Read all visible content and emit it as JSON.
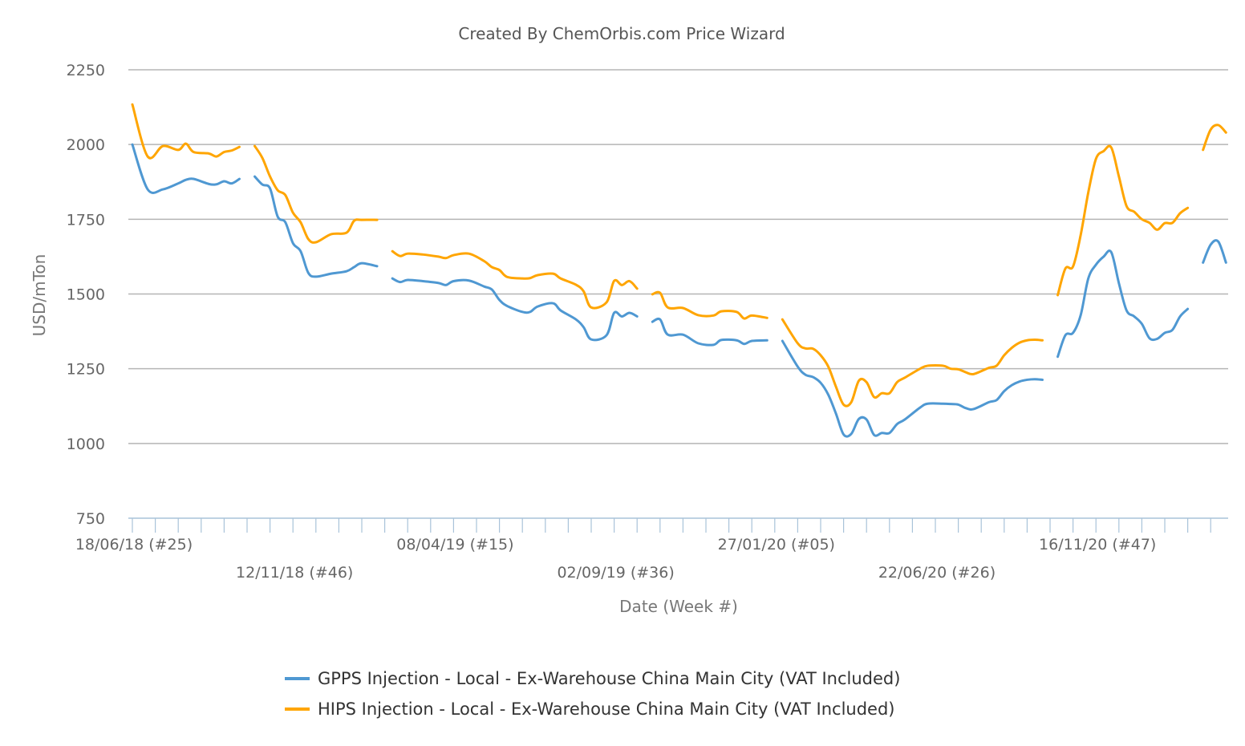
{
  "chart_data": {
    "type": "line",
    "title": "Created By ChemOrbis.com Price Wizard",
    "xlabel": "Date (Week #)",
    "ylabel": "USD/mTon",
    "ylim": [
      750,
      2250
    ],
    "yticks": [
      750,
      1000,
      1250,
      1500,
      1750,
      2000,
      2250
    ],
    "xlim": [
      "2018-06-18",
      "2021-03-17"
    ],
    "x_tick_labels": [
      {
        "date": "2018-06-18",
        "label": "18/06/18 (#25)"
      },
      {
        "date": "2018-11-12",
        "label": "12/11/18 (#46)"
      },
      {
        "date": "2019-04-08",
        "label": "08/04/19 (#15)"
      },
      {
        "date": "2019-09-02",
        "label": "02/09/19 (#36)"
      },
      {
        "date": "2020-01-27",
        "label": "27/01/20 (#05)"
      },
      {
        "date": "2020-06-22",
        "label": "22/06/20 (#26)"
      },
      {
        "date": "2020-11-16",
        "label": "16/11/20 (#47)"
      }
    ],
    "grid": true,
    "legend_position": "bottom",
    "series": [
      {
        "name": "GPPS Injection - Local - Ex-Warehouse China Main City (VAT Included)",
        "color": "#4f98d2",
        "points": [
          [
            "2018-06-18",
            2000
          ],
          [
            "2018-07-02",
            1850
          ],
          [
            "2018-07-16",
            1850
          ],
          [
            "2018-07-30",
            1870
          ],
          [
            "2018-08-06",
            1882
          ],
          [
            "2018-08-13",
            1885
          ],
          [
            "2018-08-27",
            1868
          ],
          [
            "2018-09-03",
            1867
          ],
          [
            "2018-09-10",
            1877
          ],
          [
            "2018-09-17",
            1870
          ],
          [
            "2018-09-24",
            1885
          ],
          null,
          [
            "2018-10-08",
            1893
          ],
          [
            "2018-10-15",
            1866
          ],
          [
            "2018-10-22",
            1853
          ],
          [
            "2018-10-29",
            1759
          ],
          [
            "2018-11-05",
            1740
          ],
          [
            "2018-11-12",
            1670
          ],
          [
            "2018-11-19",
            1643
          ],
          [
            "2018-11-26",
            1571
          ],
          [
            "2018-12-03",
            1558
          ],
          [
            "2018-12-17",
            1568
          ],
          [
            "2018-12-31",
            1576
          ],
          [
            "2019-01-07",
            1590
          ],
          [
            "2019-01-14",
            1603
          ],
          [
            "2019-01-28",
            1593
          ],
          null,
          [
            "2019-02-11",
            1552
          ],
          [
            "2019-02-18",
            1540
          ],
          [
            "2019-02-25",
            1547
          ],
          [
            "2019-03-11",
            1543
          ],
          [
            "2019-03-25",
            1537
          ],
          [
            "2019-04-01",
            1530
          ],
          [
            "2019-04-08",
            1543
          ],
          [
            "2019-04-22",
            1545
          ],
          [
            "2019-05-06",
            1525
          ],
          [
            "2019-05-13",
            1515
          ],
          [
            "2019-05-20",
            1480
          ],
          [
            "2019-05-27",
            1460
          ],
          [
            "2019-06-10",
            1440
          ],
          [
            "2019-06-17",
            1440
          ],
          [
            "2019-06-24",
            1458
          ],
          [
            "2019-07-08",
            1469
          ],
          [
            "2019-07-15",
            1445
          ],
          [
            "2019-07-29",
            1415
          ],
          [
            "2019-08-05",
            1389
          ],
          [
            "2019-08-12",
            1348
          ],
          [
            "2019-08-26",
            1362
          ],
          [
            "2019-09-02",
            1437
          ],
          [
            "2019-09-09",
            1425
          ],
          [
            "2019-09-16",
            1437
          ],
          [
            "2019-09-23",
            1425
          ],
          null,
          [
            "2019-10-07",
            1407
          ],
          [
            "2019-10-14",
            1415
          ],
          [
            "2019-10-21",
            1364
          ],
          [
            "2019-11-04",
            1364
          ],
          [
            "2019-11-18",
            1335
          ],
          [
            "2019-12-02",
            1330
          ],
          [
            "2019-12-09",
            1346
          ],
          [
            "2019-12-23",
            1345
          ],
          [
            "2019-12-30",
            1333
          ],
          [
            "2020-01-06",
            1343
          ],
          [
            "2020-01-20",
            1345
          ],
          null,
          [
            "2020-02-03",
            1343
          ],
          [
            "2020-02-17",
            1257
          ],
          [
            "2020-02-24",
            1230
          ],
          [
            "2020-03-02",
            1222
          ],
          [
            "2020-03-09",
            1203
          ],
          [
            "2020-03-16",
            1163
          ],
          [
            "2020-03-23",
            1100
          ],
          [
            "2020-03-30",
            1030
          ],
          [
            "2020-04-06",
            1032
          ],
          [
            "2020-04-13",
            1082
          ],
          [
            "2020-04-20",
            1080
          ],
          [
            "2020-04-27",
            1028
          ],
          [
            "2020-05-04",
            1035
          ],
          [
            "2020-05-11",
            1035
          ],
          [
            "2020-05-18",
            1065
          ],
          [
            "2020-05-25",
            1080
          ],
          [
            "2020-06-08",
            1120
          ],
          [
            "2020-06-15",
            1133
          ],
          [
            "2020-06-29",
            1133
          ],
          [
            "2020-07-06",
            1132
          ],
          [
            "2020-07-13",
            1130
          ],
          [
            "2020-07-20",
            1118
          ],
          [
            "2020-07-27",
            1115
          ],
          [
            "2020-08-10",
            1138
          ],
          [
            "2020-08-17",
            1145
          ],
          [
            "2020-08-24",
            1175
          ],
          [
            "2020-08-31",
            1195
          ],
          [
            "2020-09-07",
            1207
          ],
          [
            "2020-09-14",
            1213
          ],
          [
            "2020-09-21",
            1215
          ],
          [
            "2020-09-28",
            1213
          ],
          null,
          [
            "2020-10-12",
            1290
          ],
          [
            "2020-10-19",
            1362
          ],
          [
            "2020-10-26",
            1370
          ],
          [
            "2020-11-02",
            1429
          ],
          [
            "2020-11-09",
            1552
          ],
          [
            "2020-11-16",
            1598
          ],
          [
            "2020-11-23",
            1625
          ],
          [
            "2020-11-30",
            1640
          ],
          [
            "2020-12-07",
            1536
          ],
          [
            "2020-12-14",
            1445
          ],
          [
            "2020-12-21",
            1425
          ],
          [
            "2020-12-28",
            1400
          ],
          [
            "2021-01-04",
            1352
          ],
          [
            "2021-01-11",
            1350
          ],
          [
            "2021-01-18",
            1370
          ],
          [
            "2021-01-25",
            1380
          ],
          [
            "2021-02-01",
            1425
          ],
          [
            "2021-02-08",
            1450
          ],
          null,
          [
            "2021-02-22",
            1605
          ],
          [
            "2021-03-01",
            1665
          ],
          [
            "2021-03-08",
            1675
          ],
          [
            "2021-03-15",
            1605
          ]
        ]
      },
      {
        "name": "HIPS Injection - Local - Ex-Warehouse China Main City (VAT Included)",
        "color": "#ffa500",
        "points": [
          [
            "2018-06-18",
            2134
          ],
          [
            "2018-07-02",
            1960
          ],
          [
            "2018-07-16",
            1995
          ],
          [
            "2018-07-30",
            1982
          ],
          [
            "2018-08-06",
            2003
          ],
          [
            "2018-08-13",
            1975
          ],
          [
            "2018-08-27",
            1970
          ],
          [
            "2018-09-03",
            1960
          ],
          [
            "2018-09-10",
            1975
          ],
          [
            "2018-09-17",
            1980
          ],
          [
            "2018-09-24",
            1992
          ],
          null,
          [
            "2018-10-08",
            1995
          ],
          [
            "2018-10-15",
            1955
          ],
          [
            "2018-10-22",
            1893
          ],
          [
            "2018-10-29",
            1847
          ],
          [
            "2018-11-05",
            1831
          ],
          [
            "2018-11-12",
            1772
          ],
          [
            "2018-11-19",
            1740
          ],
          [
            "2018-11-26",
            1684
          ],
          [
            "2018-12-03",
            1673
          ],
          [
            "2018-12-17",
            1700
          ],
          [
            "2018-12-31",
            1705
          ],
          [
            "2019-01-07",
            1745
          ],
          [
            "2019-01-14",
            1748
          ],
          [
            "2019-01-28",
            1748
          ],
          null,
          [
            "2019-02-11",
            1643
          ],
          [
            "2019-02-18",
            1627
          ],
          [
            "2019-02-25",
            1635
          ],
          [
            "2019-03-11",
            1632
          ],
          [
            "2019-03-25",
            1625
          ],
          [
            "2019-04-01",
            1620
          ],
          [
            "2019-04-08",
            1630
          ],
          [
            "2019-04-22",
            1635
          ],
          [
            "2019-05-06",
            1610
          ],
          [
            "2019-05-13",
            1590
          ],
          [
            "2019-05-20",
            1580
          ],
          [
            "2019-05-27",
            1557
          ],
          [
            "2019-06-10",
            1552
          ],
          [
            "2019-06-17",
            1553
          ],
          [
            "2019-06-24",
            1563
          ],
          [
            "2019-07-08",
            1568
          ],
          [
            "2019-07-15",
            1552
          ],
          [
            "2019-07-29",
            1531
          ],
          [
            "2019-08-05",
            1509
          ],
          [
            "2019-08-12",
            1455
          ],
          [
            "2019-08-26",
            1472
          ],
          [
            "2019-09-02",
            1544
          ],
          [
            "2019-09-09",
            1530
          ],
          [
            "2019-09-16",
            1543
          ],
          [
            "2019-09-23",
            1518
          ],
          null,
          [
            "2019-10-07",
            1499
          ],
          [
            "2019-10-14",
            1504
          ],
          [
            "2019-10-21",
            1455
          ],
          [
            "2019-11-04",
            1453
          ],
          [
            "2019-11-18",
            1429
          ],
          [
            "2019-12-02",
            1428
          ],
          [
            "2019-12-09",
            1442
          ],
          [
            "2019-12-23",
            1440
          ],
          [
            "2019-12-30",
            1418
          ],
          [
            "2020-01-06",
            1428
          ],
          [
            "2020-01-20",
            1420
          ],
          null,
          [
            "2020-02-03",
            1415
          ],
          [
            "2020-02-17",
            1335
          ],
          [
            "2020-02-24",
            1318
          ],
          [
            "2020-03-02",
            1317
          ],
          [
            "2020-03-09",
            1295
          ],
          [
            "2020-03-16",
            1257
          ],
          [
            "2020-03-23",
            1190
          ],
          [
            "2020-03-30",
            1130
          ],
          [
            "2020-04-06",
            1138
          ],
          [
            "2020-04-13",
            1210
          ],
          [
            "2020-04-20",
            1205
          ],
          [
            "2020-04-27",
            1155
          ],
          [
            "2020-05-04",
            1168
          ],
          [
            "2020-05-11",
            1168
          ],
          [
            "2020-05-18",
            1205
          ],
          [
            "2020-05-25",
            1220
          ],
          [
            "2020-06-08",
            1250
          ],
          [
            "2020-06-15",
            1260
          ],
          [
            "2020-06-29",
            1260
          ],
          [
            "2020-07-06",
            1250
          ],
          [
            "2020-07-13",
            1248
          ],
          [
            "2020-07-20",
            1238
          ],
          [
            "2020-07-27",
            1232
          ],
          [
            "2020-08-10",
            1253
          ],
          [
            "2020-08-17",
            1260
          ],
          [
            "2020-08-24",
            1295
          ],
          [
            "2020-08-31",
            1320
          ],
          [
            "2020-09-07",
            1337
          ],
          [
            "2020-09-14",
            1345
          ],
          [
            "2020-09-21",
            1347
          ],
          [
            "2020-09-28",
            1345
          ],
          null,
          [
            "2020-10-12",
            1496
          ],
          [
            "2020-10-19",
            1585
          ],
          [
            "2020-10-26",
            1592
          ],
          [
            "2020-11-02",
            1697
          ],
          [
            "2020-11-09",
            1840
          ],
          [
            "2020-11-16",
            1952
          ],
          [
            "2020-11-23",
            1978
          ],
          [
            "2020-11-30",
            1990
          ],
          [
            "2020-12-07",
            1893
          ],
          [
            "2020-12-14",
            1794
          ],
          [
            "2020-12-21",
            1775
          ],
          [
            "2020-12-28",
            1750
          ],
          [
            "2021-01-04",
            1738
          ],
          [
            "2021-01-11",
            1715
          ],
          [
            "2021-01-18",
            1737
          ],
          [
            "2021-01-25",
            1738
          ],
          [
            "2021-02-01",
            1770
          ],
          [
            "2021-02-08",
            1788
          ],
          null,
          [
            "2021-02-22",
            1982
          ],
          [
            "2021-03-01",
            2050
          ],
          [
            "2021-03-08",
            2065
          ],
          [
            "2021-03-15",
            2040
          ]
        ]
      }
    ]
  }
}
